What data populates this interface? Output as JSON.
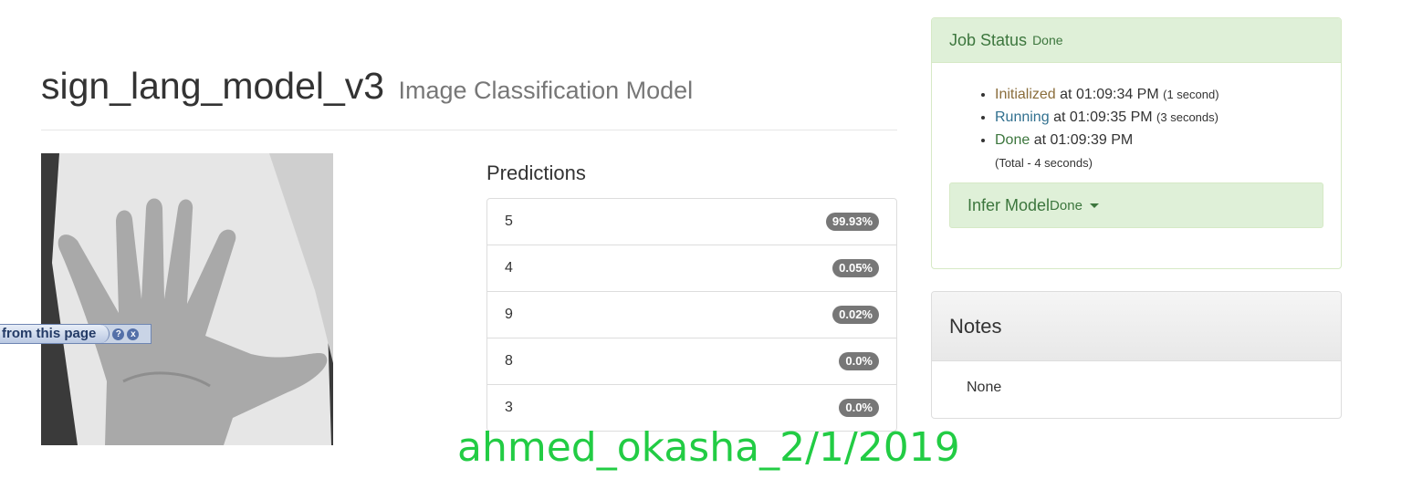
{
  "header": {
    "title": "sign_lang_model_v3",
    "subtitle": "Image Classification Model"
  },
  "bookmarklet": {
    "label": "from this page",
    "help_glyph": "?",
    "close_glyph": "x"
  },
  "predictions": {
    "heading": "Predictions",
    "items": [
      {
        "label": "5",
        "value": "99.93%"
      },
      {
        "label": "4",
        "value": "0.05%"
      },
      {
        "label": "9",
        "value": "0.02%"
      },
      {
        "label": "8",
        "value": "0.0%"
      },
      {
        "label": "3",
        "value": "0.0%"
      }
    ]
  },
  "job_status": {
    "heading": "Job Status",
    "state": "Done",
    "steps": [
      {
        "status": "Initialized",
        "at": "at",
        "time": "01:09:34 PM",
        "duration": "(1 second)"
      },
      {
        "status": "Running",
        "at": "at",
        "time": "01:09:35 PM",
        "duration": "(3 seconds)"
      },
      {
        "status": "Done",
        "at": "at",
        "time": "01:09:39 PM",
        "duration": ""
      }
    ],
    "total": "(Total - 4 seconds)",
    "infer": {
      "label": "Infer Model",
      "state": "Done"
    }
  },
  "notes": {
    "heading": "Notes",
    "body": "None"
  },
  "watermark": "ahmed_okasha_2/1/2019",
  "colors": {
    "success_bg": "#dff0d8",
    "success_text": "#3c763d",
    "badge_bg": "#777777",
    "watermark": "#22cc44"
  }
}
